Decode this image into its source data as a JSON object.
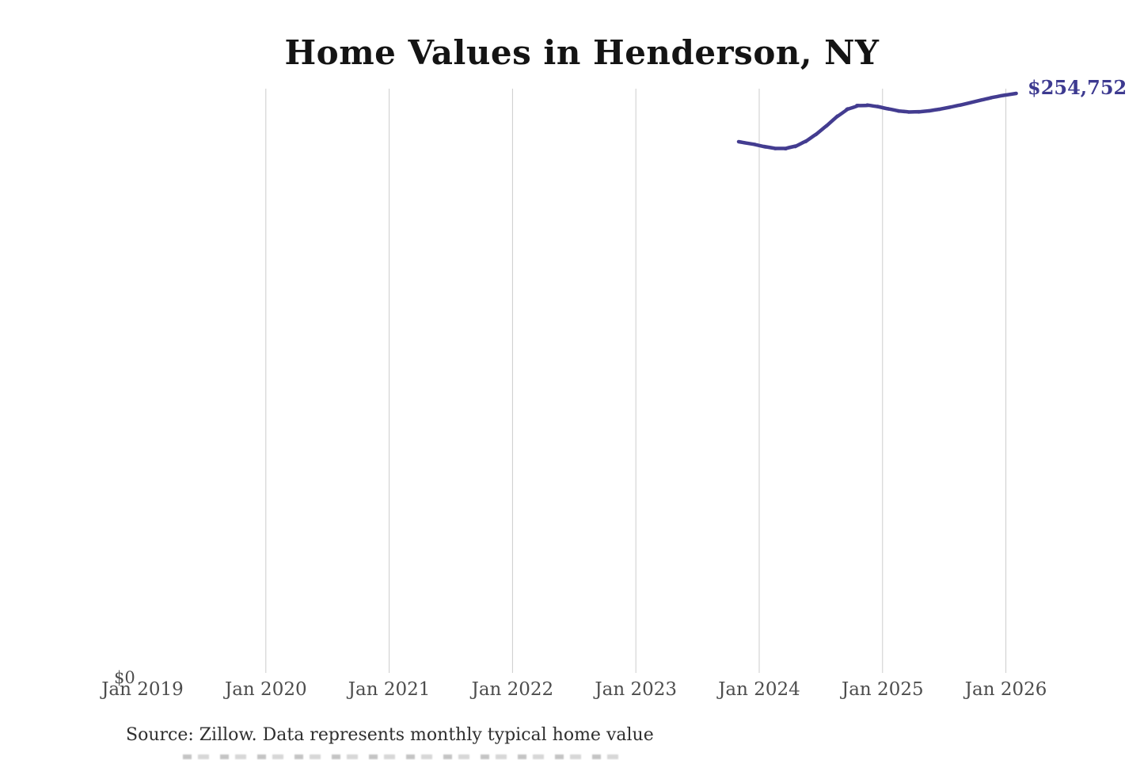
{
  "title": "Home Values in Henderson, NY",
  "zero_label": "$0",
  "source_note": "Source: Zillow. Data represents monthly typical home value",
  "colors": {
    "line": "#433c90",
    "end_label": "#3d3a90",
    "gridline": "#cccccc",
    "axis_label": "#4d4d4d",
    "title": "#141414",
    "background": "#ffffff"
  },
  "chart_data": {
    "type": "line",
    "title": "Home Values in Henderson, NY",
    "xlabel": "",
    "ylabel": "",
    "ylim": [
      0,
      256800
    ],
    "grid": "vertical-only",
    "legend_position": "none",
    "end_annotation": "$254,752",
    "x_axis": {
      "tick_labels": [
        "Jan 2019",
        "Jan 2020",
        "Jan 2021",
        "Jan 2022",
        "Jan 2023",
        "Jan 2024",
        "Jan 2025",
        "Jan 2026"
      ],
      "gridlines": [
        false,
        true,
        true,
        true,
        true,
        true,
        true,
        true
      ]
    },
    "y_axis": {
      "min": 0,
      "zero_label": "$0"
    },
    "series": [
      {
        "name": "Monthly typical home value",
        "x": [
          "Nov 2023",
          "Dec 2023",
          "Jan 2024",
          "Feb 2024",
          "Mar 2024",
          "Apr 2024",
          "May 2024",
          "Jun 2024",
          "Jul 2024",
          "Aug 2024",
          "Sep 2024",
          "Oct 2024",
          "Nov 2024",
          "Dec 2024",
          "Jan 2025",
          "Feb 2025",
          "Mar 2025",
          "Apr 2025",
          "May 2025",
          "Jun 2025",
          "Jul 2025",
          "Aug 2025",
          "Sep 2025",
          "Oct 2025",
          "Nov 2025",
          "Dec 2025",
          "Jan 2026",
          "Feb 2026"
        ],
        "values": [
          233600,
          232800,
          232100,
          230900,
          230400,
          230700,
          232300,
          235000,
          238400,
          242300,
          246400,
          249000,
          249800,
          249500,
          248600,
          247500,
          246700,
          246500,
          246800,
          247400,
          248200,
          249100,
          250100,
          251200,
          252300,
          253300,
          254100,
          254752
        ]
      }
    ]
  }
}
